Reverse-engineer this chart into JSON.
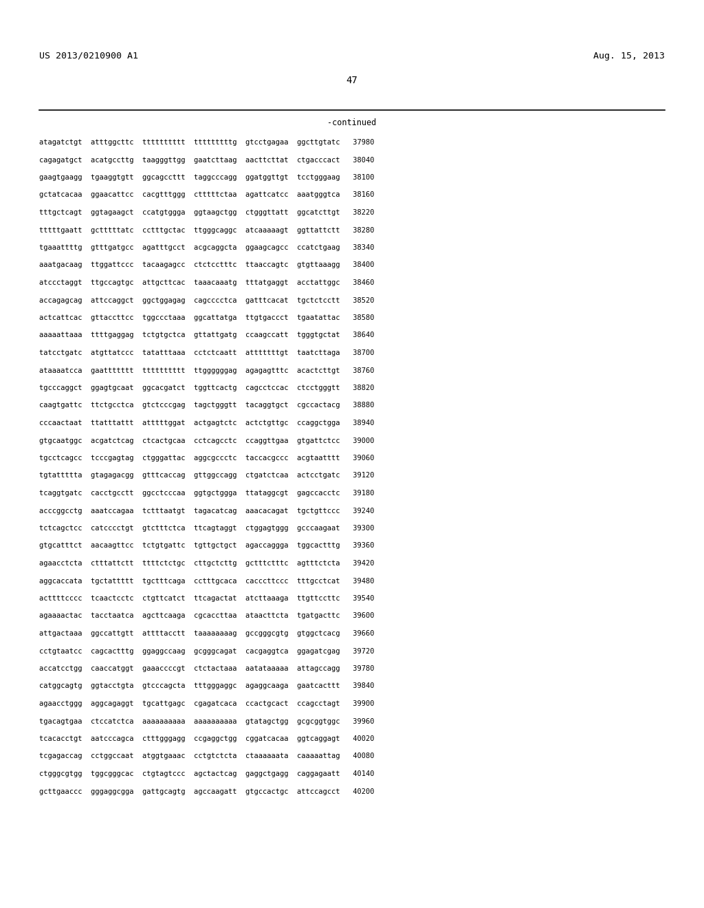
{
  "header_left": "US 2013/0210900 A1",
  "header_right": "Aug. 15, 2013",
  "page_number": "47",
  "continued_label": "-continued",
  "background_color": "#ffffff",
  "text_color": "#000000",
  "font_size": 7.5,
  "header_font_size": 9.5,
  "page_num_font_size": 10,
  "continued_font_size": 8.5,
  "lines": [
    "atagatctgt  atttggcttc  tttttttttt  tttttttttg  gtcctgagaa  ggcttgtatc   37980",
    "cagagatgct  acatgccttg  taagggttgg  gaatcttaag  aacttcttat  ctgacccact   38040",
    "gaagtgaagg  tgaaggtgtt  ggcagccttt  taggcccagg  ggatggttgt  tcctgggaag   38100",
    "gctatcacaa  ggaacattcc  cacgtttggg  ctttttctaa  agattcatcc  aaatgggtca   38160",
    "tttgctcagt  ggtagaagct  ccatgtggga  ggtaagctgg  ctgggttatt  ggcatcttgt   38220",
    "tttttgaatt  gctttttatc  cctttgctac  ttgggcaggc  atcaaaaagt  ggttattctt   38280",
    "tgaaattttg  gtttgatgcc  agatttgcct  acgcaggcta  ggaagcagcc  ccatctgaag   38340",
    "aaatgacaag  ttggattccc  tacaagagcc  ctctcctttc  ttaaccagtc  gtgttaaagg   38400",
    "atccctaggt  ttgccagtgc  attgcttcac  taaacaaatg  tttatgaggt  acctattggc   38460",
    "accagagcag  attccaggct  ggctggagag  cagcccctca  gatttcacat  tgctctcctt   38520",
    "actcattcac  gttaccttcc  tggccctaaa  ggcattatga  ttgtgaccct  tgaatattac   38580",
    "aaaaattaaa  ttttgaggag  tctgtgctca  gttattgatg  ccaagccatt  tgggtgctat   38640",
    "tatcctgatc  atgttatccc  tatatttaaa  cctctcaatt  atttttttgt  taatcttaga   38700",
    "ataaaatcca  gaattttttt  tttttttttt  ttggggggag  agagagtttc  acactcttgt   38760",
    "tgcccaggct  ggagtgcaat  ggcacgatct  tggttcactg  cagcctccac  ctcctgggtt   38820",
    "caagtgattc  ttctgcctca  gtctcccgag  tagctgggtt  tacaggtgct  cgccactacg   38880",
    "cccaactaat  ttatttattt  atttttggat  actgagtctc  actctgttgc  ccaggctgga   38940",
    "gtgcaatggc  acgatctcag  ctcactgcaa  cctcagcctc  ccaggttgaa  gtgattctcc   39000",
    "tgcctcagcc  tcccgagtag  ctgggattac  aggcgccctc  taccacgccc  acgtaatttt   39060",
    "tgtattttta  gtagagacgg  gtttcaccag  gttggccagg  ctgatctcaa  actcctgatc   39120",
    "tcaggtgatc  cacctgcctt  ggcctcccaa  ggtgctggga  ttataggcgt  gagccacctc   39180",
    "acccggcctg  aaatccagaa  tctttaatgt  tagacatcag  aaacacagat  tgctgttccc   39240",
    "tctcagctcc  catcccctgt  gtctttctca  ttcagtaggt  ctggagtggg  gcccaagaat   39300",
    "gtgcatttct  aacaagttcc  tctgtgattc  tgttgctgct  agaccaggga  tggcactttg   39360",
    "agaacctcta  ctttattctt  ttttctctgc  cttgctcttg  gctttctttc  agtttctcta   39420",
    "aggcaccata  tgctattttt  tgctttcaga  cctttgcaca  cacccttccc  tttgcctcat   39480",
    "acttttcccc  tcaactcctc  ctgttcatct  ttcagactat  atcttaaaga  ttgttccttc   39540",
    "agaaaactac  tacctaatca  agcttcaaga  cgcaccttaa  ataacttcta  tgatgacttc   39600",
    "attgactaaa  ggccattgtt  attttacctt  taaaaaaaag  gccgggcgtg  gtggctcacg   39660",
    "cctgtaatcc  cagcactttg  ggaggccaag  gcgggcagat  cacgaggtca  ggagatcgag   39720",
    "accatcctgg  caaccatggt  gaaaccccgt  ctctactaaa  aatataaaaa  attagccagg   39780",
    "catggcagtg  ggtacctgta  gtcccagcta  tttgggaggc  agaggcaaga  gaatcacttt   39840",
    "agaacctggg  aggcagaggt  tgcattgagc  cgagatcaca  ccactgcact  ccagcctagt   39900",
    "tgacagtgaa  ctccatctca  aaaaaaaaaa  aaaaaaaaaa  gtatagctgg  gcgcggtggc   39960",
    "tcacacctgt  aatcccagca  ctttgggagg  ccgaggctgg  cggatcacaa  ggtcaggagt   40020",
    "tcgagaccag  cctggccaat  atggtgaaac  cctgtctcta  ctaaaaaata  caaaaattag   40080",
    "ctgggcgtgg  tggcgggcac  ctgtagtccc  agctactcag  gaggctgagg  caggagaatt   40140",
    "gcttgaaccc  gggaggcgga  gattgcagtg  agccaagatt  gtgccactgc  attccagcct   40200"
  ]
}
